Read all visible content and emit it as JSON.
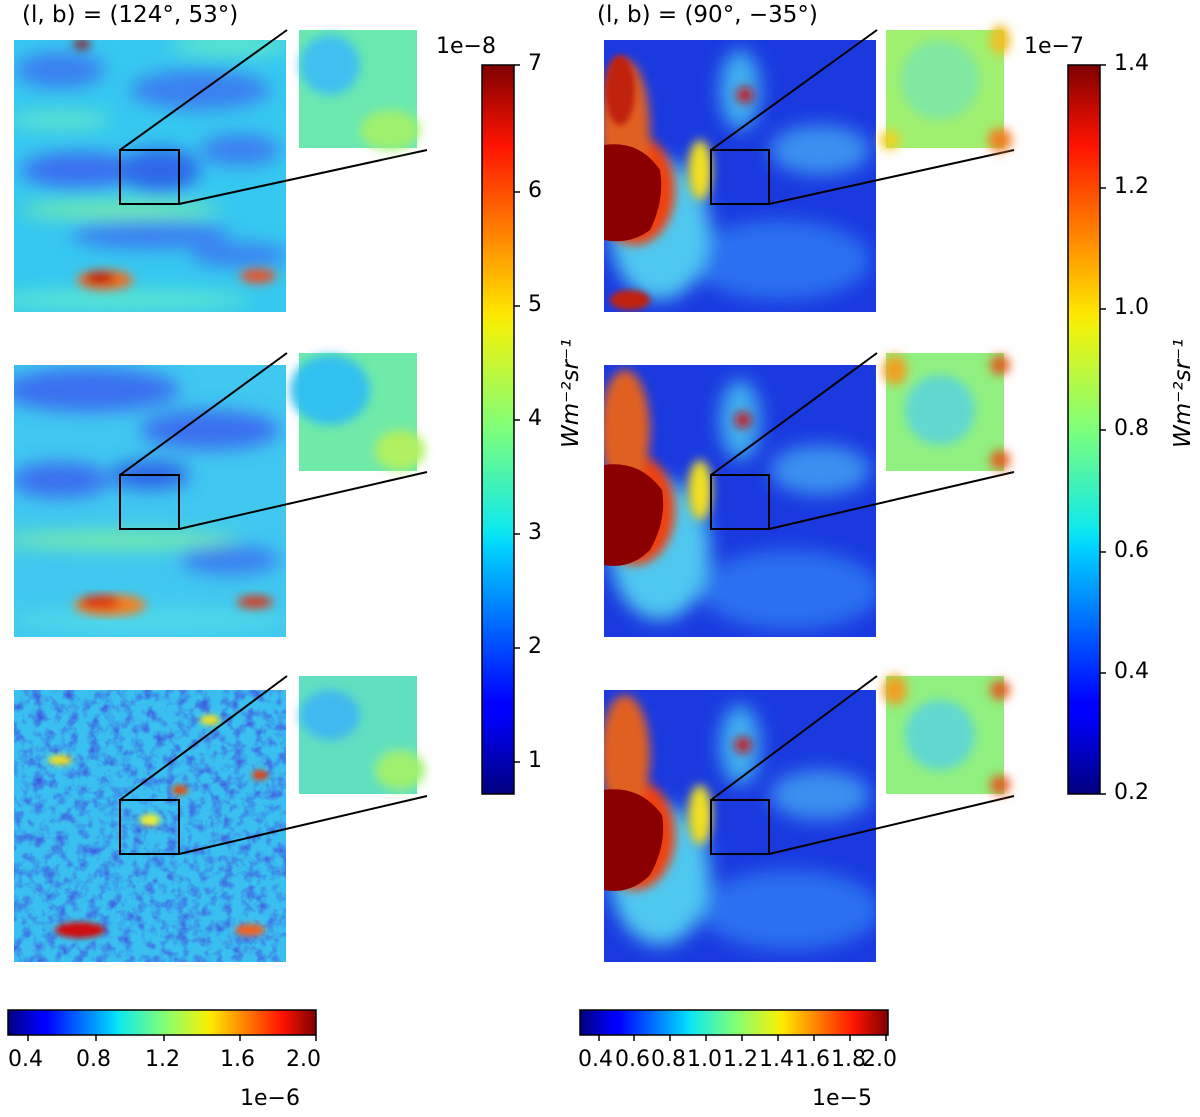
{
  "panels": [
    {
      "title": "(l, b) = (124°, 53°)",
      "colorbar_v": {
        "exponent": "1e−8",
        "ticks": [
          "1",
          "2",
          "3",
          "4",
          "5",
          "6",
          "7"
        ],
        "label": "Wm⁻²sr⁻¹"
      },
      "colorbar_h": {
        "exponent": "1e−6",
        "ticks": [
          "0.4",
          "0.8",
          "1.2",
          "1.6",
          "2.0"
        ]
      }
    },
    {
      "title": "(l, b) = (90°, −35°)",
      "colorbar_v": {
        "exponent": "1e−7",
        "ticks": [
          "0.2",
          "0.4",
          "0.6",
          "0.8",
          "1.0",
          "1.2",
          "1.4"
        ],
        "label": "Wm⁻²sr⁻¹"
      },
      "colorbar_h": {
        "exponent": "1e−5",
        "ticks": [
          "0.4",
          "0.6",
          "0.8",
          "1.0",
          "1.2",
          "1.4",
          "1.6",
          "1.8",
          "2.0"
        ]
      }
    }
  ],
  "colors": {
    "deep_blue": "#0a1aa8",
    "blue": "#2c5fe8",
    "light_blue": "#3fb0f0",
    "cyan": "#36e0e0",
    "green": "#9cf070",
    "yellow": "#f0f020",
    "orange": "#f08020",
    "red": "#d01010",
    "dark_red": "#800000"
  },
  "colormap": "jet"
}
